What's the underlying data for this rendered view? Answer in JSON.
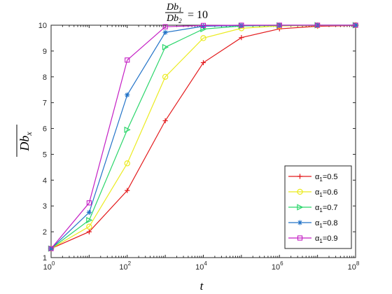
{
  "chart_data": {
    "type": "line",
    "title": "Db1/Db2 = 10",
    "title_parts": {
      "lhs_num": "Db",
      "lhs_num_sub": "1",
      "lhs_den": "Db",
      "lhs_den_sub": "2",
      "rhs": "= 10"
    },
    "xlabel": "t",
    "ylabel": "Db",
    "ylabel_sub": "x",
    "x_scale": "log",
    "xlim": [
      1,
      100000000
    ],
    "ylim": [
      1,
      10
    ],
    "grid": false,
    "legend_position": "bottom-right",
    "x_ticks": [
      {
        "base": "10",
        "exp": "0"
      },
      {
        "base": "10",
        "exp": "2"
      },
      {
        "base": "10",
        "exp": "4"
      },
      {
        "base": "10",
        "exp": "6"
      },
      {
        "base": "10",
        "exp": "8"
      }
    ],
    "y_ticks": [
      "1",
      "2",
      "3",
      "4",
      "5",
      "6",
      "7",
      "8",
      "9",
      "10"
    ],
    "x": [
      1,
      10,
      100,
      1000,
      10000,
      100000,
      1000000,
      10000000,
      100000000
    ],
    "series": [
      {
        "label_prefix": "α",
        "label_sub": "1",
        "label_value": "=0.5",
        "color": "#e31a1c",
        "marker": "plus",
        "values": [
          1.35,
          2.0,
          3.6,
          6.3,
          8.55,
          9.52,
          9.86,
          9.96,
          9.99
        ]
      },
      {
        "label_prefix": "α",
        "label_sub": "1",
        "label_value": "=0.6",
        "color": "#ebeb1f",
        "marker": "circle",
        "values": [
          1.35,
          2.2,
          4.65,
          8.0,
          9.5,
          9.88,
          9.97,
          9.99,
          10.0
        ]
      },
      {
        "label_prefix": "α",
        "label_sub": "1",
        "label_value": "=0.7",
        "color": "#2bd66b",
        "marker": "triangle-right",
        "values": [
          1.35,
          2.45,
          5.95,
          9.15,
          9.85,
          9.97,
          9.99,
          10.0,
          10.0
        ]
      },
      {
        "label_prefix": "α",
        "label_sub": "1",
        "label_value": "=0.8",
        "color": "#2273c8",
        "marker": "asterisk",
        "values": [
          1.35,
          2.75,
          7.3,
          9.72,
          9.96,
          9.99,
          10.0,
          10.0,
          10.0
        ]
      },
      {
        "label_prefix": "α",
        "label_sub": "1",
        "label_value": "=0.9",
        "color": "#c41ec4",
        "marker": "square",
        "values": [
          1.35,
          3.12,
          8.65,
          9.94,
          9.99,
          10.0,
          10.0,
          10.0,
          10.0
        ]
      }
    ]
  }
}
